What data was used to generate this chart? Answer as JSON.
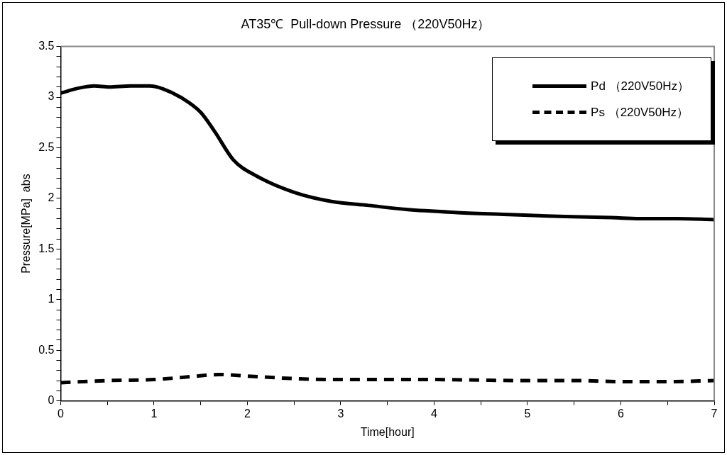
{
  "chart_data": {
    "type": "line",
    "title": "AT35℃  Pull-down Pressure （220V50Hz）",
    "xlabel": "Time[hour]",
    "ylabel": "Pressure[MPa]  abs",
    "xlim": [
      0,
      7
    ],
    "xticks": [
      0,
      {
        "value": 0.5,
        "label": null
      },
      1,
      {
        "value": 1.5,
        "label": null
      },
      2,
      {
        "value": 2.5,
        "label": null
      },
      3,
      {
        "value": 3.5,
        "label": null
      },
      4,
      {
        "value": 4.5,
        "label": null
      },
      5,
      {
        "value": 5.5,
        "label": null
      },
      6,
      {
        "value": 6.5,
        "label": null
      },
      7
    ],
    "ylim": [
      0,
      3.5
    ],
    "yticks": [
      0,
      {
        "value": 0.1,
        "label": null
      },
      {
        "value": 0.2,
        "label": null
      },
      {
        "value": 0.3,
        "label": null
      },
      {
        "value": 0.4,
        "label": null
      },
      0.5,
      {
        "value": 0.6,
        "label": null
      },
      {
        "value": 0.7,
        "label": null
      },
      {
        "value": 0.8,
        "label": null
      },
      {
        "value": 0.9,
        "label": null
      },
      1,
      {
        "value": 1.1,
        "label": null
      },
      {
        "value": 1.2,
        "label": null
      },
      {
        "value": 1.3,
        "label": null
      },
      {
        "value": 1.4,
        "label": null
      },
      1.5,
      {
        "value": 1.6,
        "label": null
      },
      {
        "value": 1.7,
        "label": null
      },
      {
        "value": 1.8,
        "label": null
      },
      {
        "value": 1.9,
        "label": null
      },
      2,
      {
        "value": 2.1,
        "label": null
      },
      {
        "value": 2.2,
        "label": null
      },
      {
        "value": 2.3,
        "label": null
      },
      {
        "value": 2.4,
        "label": null
      },
      2.5,
      {
        "value": 2.6,
        "label": null
      },
      {
        "value": 2.7,
        "label": null
      },
      {
        "value": 2.8,
        "label": null
      },
      {
        "value": 2.9,
        "label": null
      },
      3,
      {
        "value": 3.1,
        "label": null
      },
      {
        "value": 3.2,
        "label": null
      },
      {
        "value": 3.3,
        "label": null
      },
      {
        "value": 3.4,
        "label": null
      },
      3.5
    ],
    "grid": false,
    "legend": "top right",
    "marker": "none",
    "series": [
      {
        "name": "Pd （220V50Hz）",
        "color": "#000000",
        "line_style": "solid",
        "x": [
          0,
          0.2,
          0.36,
          0.52,
          0.75,
          0.95,
          1.1,
          1.3,
          1.5,
          1.65,
          1.85,
          2.1,
          2.5,
          2.9,
          3.3,
          3.7,
          4.25,
          4.8,
          5.4,
          5.9,
          6.2,
          6.6,
          7
        ],
        "values": [
          3.04,
          3.09,
          3.11,
          3.1,
          3.11,
          3.11,
          3.08,
          2.99,
          2.85,
          2.66,
          2.38,
          2.22,
          2.06,
          1.97,
          1.93,
          1.89,
          1.86,
          1.84,
          1.82,
          1.81,
          1.8,
          1.8,
          1.79
        ]
      },
      {
        "name": "Ps （220V50Hz）",
        "color": "#000000",
        "line_style": "dashed",
        "x": [
          0,
          0.5,
          1,
          1.4,
          1.7,
          2,
          2.5,
          3,
          4,
          5,
          5.5,
          6,
          6.5,
          7
        ],
        "values": [
          0.18,
          0.2,
          0.21,
          0.24,
          0.26,
          0.245,
          0.22,
          0.21,
          0.21,
          0.2,
          0.2,
          0.19,
          0.19,
          0.2
        ]
      }
    ]
  }
}
